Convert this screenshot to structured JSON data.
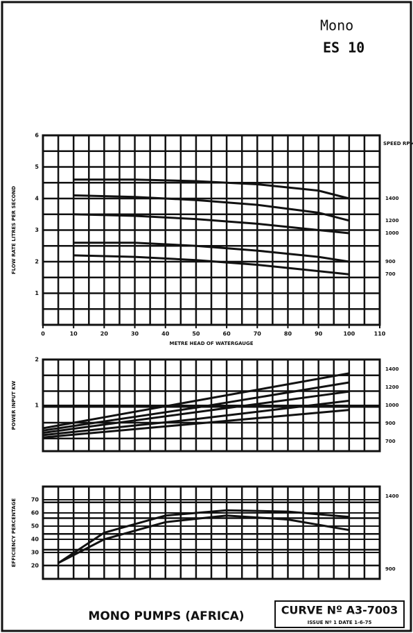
{
  "header": {
    "model": "Mono",
    "code": "ES 10"
  },
  "chart_data": [
    {
      "type": "line",
      "y_label": "FLOW RATE LITRES PER SECOND",
      "x_label": "METRE HEAD OF WATERGAUGE",
      "right_title": "SPEED RPM",
      "xlim": [
        0,
        110
      ],
      "xticks": [
        0,
        10,
        20,
        30,
        40,
        50,
        60,
        70,
        80,
        90,
        100,
        110
      ],
      "ylim": [
        0,
        6
      ],
      "yticks": [
        1,
        2,
        3,
        4,
        5,
        6
      ],
      "grid": true,
      "x": [
        10,
        30,
        50,
        70,
        90,
        100
      ],
      "series": [
        {
          "name": "1400",
          "color": "#111111",
          "values": [
            4.6,
            4.6,
            4.55,
            4.45,
            4.25,
            4.0
          ]
        },
        {
          "name": "1200",
          "color": "#111111",
          "values": [
            4.1,
            4.05,
            3.95,
            3.8,
            3.55,
            3.3
          ]
        },
        {
          "name": "1000",
          "color": "#111111",
          "values": [
            3.5,
            3.45,
            3.35,
            3.2,
            3.0,
            2.9
          ]
        },
        {
          "name": "900",
          "color": "#111111",
          "values": [
            2.6,
            2.6,
            2.5,
            2.35,
            2.15,
            2.0
          ]
        },
        {
          "name": "700",
          "color": "#111111",
          "values": [
            2.2,
            2.15,
            2.05,
            1.9,
            1.7,
            1.6
          ]
        }
      ]
    },
    {
      "type": "line",
      "y_label": "POWER INPUT KW",
      "xlim": [
        0,
        110
      ],
      "ylim": [
        0,
        2
      ],
      "yticks": [
        1,
        2
      ],
      "grid": true,
      "x": [
        0,
        50,
        100
      ],
      "series": [
        {
          "name": "1400",
          "color": "#111111",
          "values": [
            0.5,
            1.1,
            1.7
          ]
        },
        {
          "name": "1200",
          "color": "#111111",
          "values": [
            0.45,
            0.95,
            1.5
          ]
        },
        {
          "name": "1000",
          "color": "#111111",
          "values": [
            0.4,
            0.85,
            1.3
          ]
        },
        {
          "name": "900",
          "color": "#111111",
          "values": [
            0.35,
            0.7,
            1.1
          ]
        },
        {
          "name": "700",
          "color": "#111111",
          "values": [
            0.3,
            0.6,
            0.9
          ]
        }
      ]
    },
    {
      "type": "line",
      "y_label": "EFFICIENCY PERCENTAGE",
      "xlim": [
        0,
        110
      ],
      "ylim": [
        10,
        80
      ],
      "yticks": [
        20,
        30,
        40,
        50,
        60,
        70
      ],
      "grid": true,
      "x": [
        5,
        20,
        40,
        60,
        80,
        100
      ],
      "series": [
        {
          "name": "1400",
          "color": "#111111",
          "values": [
            22,
            45,
            58,
            62,
            61,
            57
          ]
        },
        {
          "name": "900",
          "color": "#111111",
          "values": [
            22,
            40,
            53,
            58,
            55,
            47
          ]
        }
      ]
    }
  ],
  "footer": {
    "company": "MONO PUMPS (AFRICA)",
    "curve": "CURVE Nº A3-7003",
    "issue": "ISSUE Nº 1   DATE 1-6-75"
  }
}
